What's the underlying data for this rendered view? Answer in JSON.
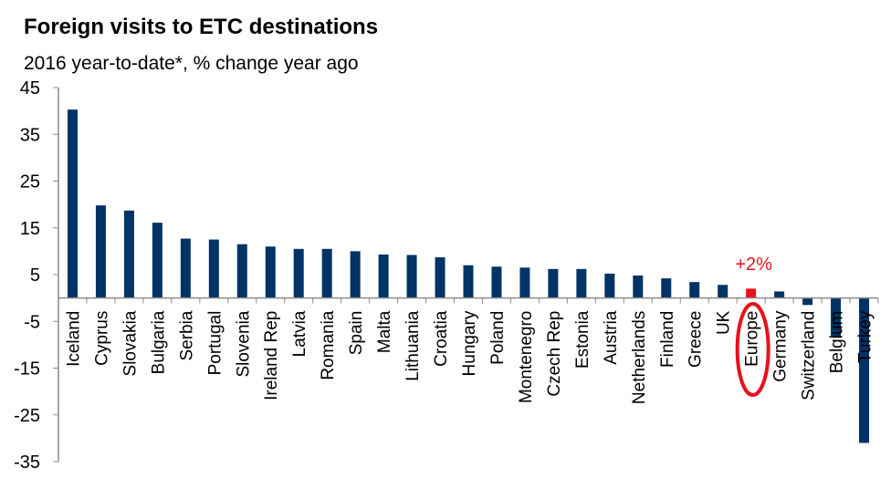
{
  "chart_data": {
    "type": "bar",
    "title": "Foreign visits to ETC destinations",
    "subtitle": "2016 year-to-date*, % change year ago",
    "categories": [
      "Iceland",
      "Cyprus",
      "Slovakia",
      "Bulgaria",
      "Serbia",
      "Portugal",
      "Slovenia",
      "Ireland Rep",
      "Latvia",
      "Romania",
      "Spain",
      "Malta",
      "Lithuania",
      "Croatia",
      "Hungary",
      "Poland",
      "Montenegro",
      "Czech Rep",
      "Estonia",
      "Austria",
      "Netherlands",
      "Finland",
      "Greece",
      "UK",
      "Europe",
      "Germany",
      "Switzerland",
      "Belgium",
      "Turkey"
    ],
    "values": [
      40.3,
      19.8,
      18.7,
      16.1,
      12.7,
      12.5,
      11.5,
      11.0,
      10.5,
      10.5,
      10.0,
      9.3,
      9.2,
      8.7,
      7.0,
      6.7,
      6.5,
      6.2,
      6.2,
      5.2,
      4.8,
      4.2,
      3.4,
      2.8,
      2.0,
      1.4,
      -1.5,
      -8.5,
      -31.0
    ],
    "ylim": [
      -35,
      45
    ],
    "yticks": [
      45,
      35,
      25,
      15,
      5,
      -5,
      -15,
      -25,
      -35
    ],
    "grid": false,
    "bar_color": "#003366",
    "highlight": {
      "category": "Europe",
      "label": "+2%",
      "color": "#e8111b"
    }
  }
}
